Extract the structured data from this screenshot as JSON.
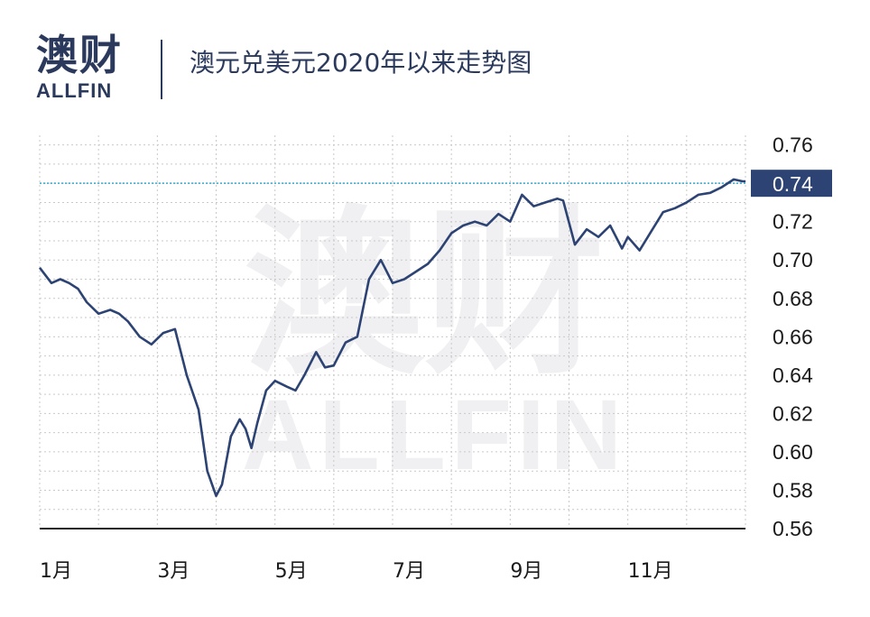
{
  "header": {
    "logo_cn": "澳财",
    "logo_en": "ALLFIN",
    "title": "澳元兑美元2020年以来走势图"
  },
  "watermark": {
    "cn": "澳财",
    "en": "ALLFIN"
  },
  "colors": {
    "line": "#2c4373",
    "badge": "#2c4373",
    "brand": "#2b3a5c",
    "accent": "#c8304e",
    "ref_line": "#3aa9c9"
  },
  "chart_data": {
    "type": "line",
    "title": "澳元兑美元2020年以来走势图",
    "xlabel": "",
    "ylabel": "",
    "xticks": [
      "1月",
      "3月",
      "5月",
      "7月",
      "9月",
      "11月"
    ],
    "yticks": [
      "0.76",
      "0.74",
      "0.72",
      "0.70",
      "0.68",
      "0.66",
      "0.64",
      "0.62",
      "0.60",
      "0.58",
      "0.56"
    ],
    "ylim": [
      0.56,
      0.765
    ],
    "xlim": [
      0,
      12
    ],
    "grid": true,
    "last_value_label": "0.74",
    "reference_line": 0.74,
    "series": [
      {
        "x": [
          0.0,
          0.2,
          0.35,
          0.5,
          0.65,
          0.8,
          1.0,
          1.2,
          1.35,
          1.5,
          1.7,
          1.9,
          2.1,
          2.3,
          2.5,
          2.7,
          2.85,
          3.0,
          3.1,
          3.25,
          3.4,
          3.5,
          3.6,
          3.7,
          3.85,
          4.0,
          4.2,
          4.35,
          4.5,
          4.7,
          4.85,
          5.0,
          5.2,
          5.4,
          5.6,
          5.8,
          6.0,
          6.2,
          6.4,
          6.6,
          6.8,
          7.0,
          7.2,
          7.4,
          7.6,
          7.8,
          8.0,
          8.2,
          8.4,
          8.6,
          8.8,
          8.9,
          9.1,
          9.3,
          9.5,
          9.7,
          9.9,
          10.0,
          10.2,
          10.4,
          10.6,
          10.8,
          11.0,
          11.2,
          11.4,
          11.6,
          11.8,
          11.95,
          12.0
        ],
        "y": [
          0.696,
          0.688,
          0.69,
          0.688,
          0.685,
          0.678,
          0.672,
          0.674,
          0.672,
          0.668,
          0.66,
          0.656,
          0.662,
          0.664,
          0.64,
          0.622,
          0.59,
          0.577,
          0.583,
          0.608,
          0.617,
          0.612,
          0.602,
          0.615,
          0.632,
          0.637,
          0.634,
          0.632,
          0.64,
          0.652,
          0.644,
          0.645,
          0.657,
          0.66,
          0.69,
          0.7,
          0.688,
          0.69,
          0.694,
          0.698,
          0.705,
          0.714,
          0.718,
          0.72,
          0.718,
          0.724,
          0.72,
          0.734,
          0.728,
          0.73,
          0.732,
          0.731,
          0.708,
          0.716,
          0.712,
          0.718,
          0.706,
          0.712,
          0.705,
          0.715,
          0.725,
          0.727,
          0.73,
          0.734,
          0.735,
          0.738,
          0.742,
          0.741,
          0.741
        ]
      }
    ]
  }
}
